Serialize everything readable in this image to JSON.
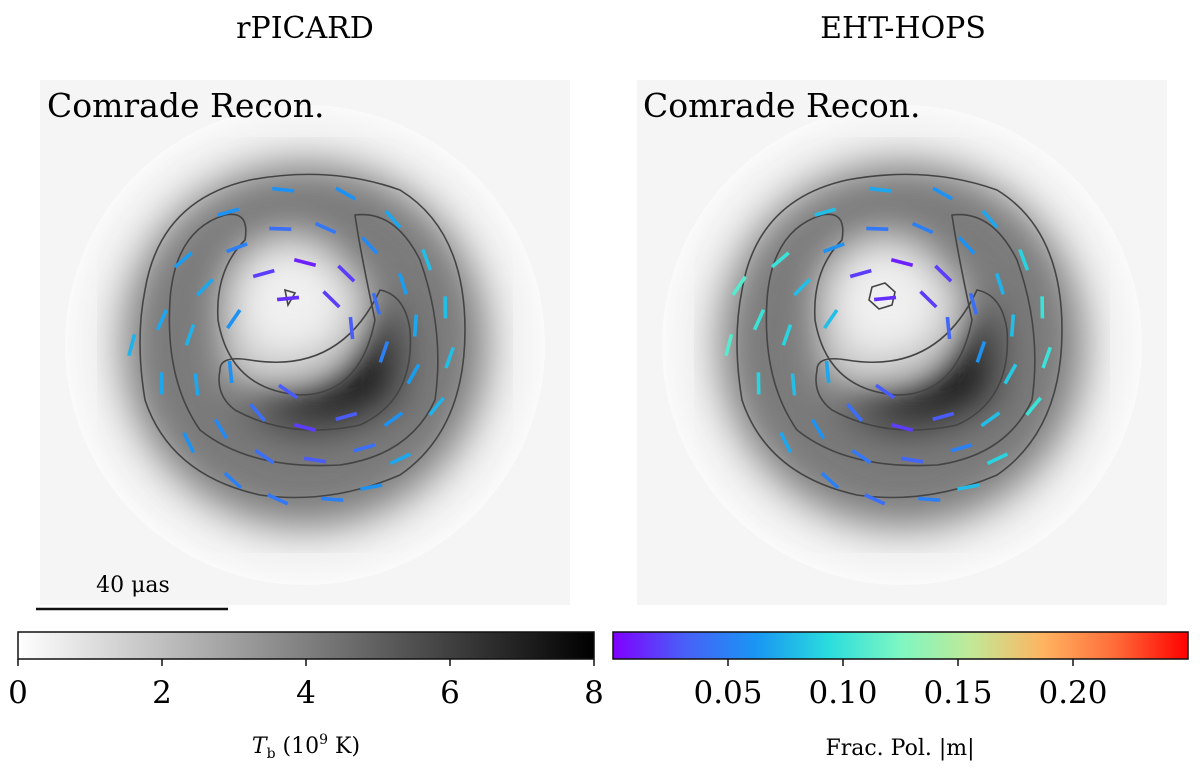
{
  "chart_data": {
    "type": "heatmap",
    "panels": [
      {
        "title": "rPICARD",
        "label": "Comrade Recon.",
        "scale_bar": "40 μas",
        "ring": {
          "peak_angle_deg": 270,
          "gap_angle_deg": 80,
          "center_feature": "triangle"
        },
        "evpa_ticks": [
          {
            "r": 0.9,
            "a": 50,
            "m": 0.07
          },
          {
            "r": 0.95,
            "a": 65,
            "m": 0.06
          },
          {
            "r": 0.95,
            "a": 80,
            "m": 0.05
          },
          {
            "r": 0.95,
            "a": 100,
            "m": 0.045
          },
          {
            "r": 0.93,
            "a": 118,
            "m": 0.05
          },
          {
            "r": 0.92,
            "a": 140,
            "m": 0.06
          },
          {
            "r": 0.9,
            "a": 165,
            "m": 0.07
          },
          {
            "r": 0.88,
            "a": 190,
            "m": 0.07
          },
          {
            "r": 0.9,
            "a": 215,
            "m": 0.065
          },
          {
            "r": 0.93,
            "a": 240,
            "m": 0.06
          },
          {
            "r": 0.95,
            "a": 262,
            "m": 0.06
          },
          {
            "r": 0.95,
            "a": 285,
            "m": 0.06
          },
          {
            "r": 0.93,
            "a": 305,
            "m": 0.07
          },
          {
            "r": 0.9,
            "a": 325,
            "m": 0.08
          },
          {
            "r": 0.88,
            "a": 345,
            "m": 0.08
          },
          {
            "r": 0.88,
            "a": 5,
            "m": 0.08
          },
          {
            "r": 0.88,
            "a": 25,
            "m": 0.075
          },
          {
            "r": 0.7,
            "a": 40,
            "m": 0.06
          },
          {
            "r": 0.72,
            "a": 60,
            "m": 0.04
          },
          {
            "r": 0.7,
            "a": 85,
            "m": 0.03
          },
          {
            "r": 0.72,
            "a": 110,
            "m": 0.04
          },
          {
            "r": 0.72,
            "a": 135,
            "m": 0.055
          },
          {
            "r": 0.7,
            "a": 160,
            "m": 0.07
          },
          {
            "r": 0.7,
            "a": 185,
            "m": 0.075
          },
          {
            "r": 0.7,
            "a": 210,
            "m": 0.07
          },
          {
            "r": 0.72,
            "a": 235,
            "m": 0.05
          },
          {
            "r": 0.72,
            "a": 258,
            "m": 0.04
          },
          {
            "r": 0.72,
            "a": 280,
            "m": 0.045
          },
          {
            "r": 0.72,
            "a": 303,
            "m": 0.055
          },
          {
            "r": 0.7,
            "a": 328,
            "m": 0.065
          },
          {
            "r": 0.68,
            "a": 350,
            "m": 0.07
          },
          {
            "r": 0.68,
            "a": 15,
            "m": 0.065
          },
          {
            "r": 0.5,
            "a": 60,
            "m": 0.03
          },
          {
            "r": 0.5,
            "a": 90,
            "m": 0.02
          },
          {
            "r": 0.5,
            "a": 125,
            "m": 0.04
          },
          {
            "r": 0.48,
            "a": 160,
            "m": 0.06
          },
          {
            "r": 0.46,
            "a": 200,
            "m": 0.06
          },
          {
            "r": 0.5,
            "a": 240,
            "m": 0.02
          },
          {
            "r": 0.5,
            "a": 270,
            "m": 0.01
          },
          {
            "r": 0.5,
            "a": 300,
            "m": 0.02
          },
          {
            "r": 0.5,
            "a": 330,
            "m": 0.04
          },
          {
            "r": 0.48,
            "a": 5,
            "m": 0.05
          },
          {
            "r": 0.3,
            "a": 250,
            "m": 0.015
          },
          {
            "r": 0.32,
            "a": 300,
            "m": 0.02
          },
          {
            "r": 0.3,
            "a": 340,
            "m": 0.03
          },
          {
            "r": 0.3,
            "a": 110,
            "m": 0.03
          },
          {
            "r": 1.05,
            "a": 180,
            "m": 0.075
          }
        ]
      },
      {
        "title": "EHT-HOPS",
        "label": "Comrade Recon.",
        "scale_bar": "",
        "ring": {
          "peak_angle_deg": 270,
          "gap_angle_deg": 80,
          "center_feature": "hexagon"
        },
        "evpa_ticks": [
          {
            "r": 0.9,
            "a": 50,
            "m": 0.09
          },
          {
            "r": 0.95,
            "a": 65,
            "m": 0.08
          },
          {
            "r": 0.95,
            "a": 80,
            "m": 0.05
          },
          {
            "r": 0.95,
            "a": 100,
            "m": 0.04
          },
          {
            "r": 0.93,
            "a": 118,
            "m": 0.05
          },
          {
            "r": 0.92,
            "a": 140,
            "m": 0.07
          },
          {
            "r": 0.9,
            "a": 165,
            "m": 0.09
          },
          {
            "r": 0.88,
            "a": 190,
            "m": 0.1
          },
          {
            "r": 0.9,
            "a": 215,
            "m": 0.1
          },
          {
            "r": 0.93,
            "a": 240,
            "m": 0.08
          },
          {
            "r": 0.95,
            "a": 262,
            "m": 0.07
          },
          {
            "r": 0.95,
            "a": 285,
            "m": 0.06
          },
          {
            "r": 0.93,
            "a": 305,
            "m": 0.07
          },
          {
            "r": 0.9,
            "a": 325,
            "m": 0.09
          },
          {
            "r": 0.88,
            "a": 345,
            "m": 0.1
          },
          {
            "r": 0.88,
            "a": 5,
            "m": 0.1
          },
          {
            "r": 0.88,
            "a": 25,
            "m": 0.1
          },
          {
            "r": 0.7,
            "a": 40,
            "m": 0.08
          },
          {
            "r": 0.72,
            "a": 60,
            "m": 0.05
          },
          {
            "r": 0.7,
            "a": 85,
            "m": 0.035
          },
          {
            "r": 0.72,
            "a": 110,
            "m": 0.045
          },
          {
            "r": 0.72,
            "a": 135,
            "m": 0.06
          },
          {
            "r": 0.7,
            "a": 160,
            "m": 0.08
          },
          {
            "r": 0.7,
            "a": 185,
            "m": 0.09
          },
          {
            "r": 0.7,
            "a": 210,
            "m": 0.08
          },
          {
            "r": 0.72,
            "a": 235,
            "m": 0.06
          },
          {
            "r": 0.72,
            "a": 258,
            "m": 0.045
          },
          {
            "r": 0.72,
            "a": 280,
            "m": 0.05
          },
          {
            "r": 0.72,
            "a": 303,
            "m": 0.06
          },
          {
            "r": 0.7,
            "a": 328,
            "m": 0.075
          },
          {
            "r": 0.68,
            "a": 350,
            "m": 0.08
          },
          {
            "r": 0.68,
            "a": 15,
            "m": 0.085
          },
          {
            "r": 0.5,
            "a": 60,
            "m": 0.03
          },
          {
            "r": 0.5,
            "a": 90,
            "m": 0.02
          },
          {
            "r": 0.5,
            "a": 125,
            "m": 0.04
          },
          {
            "r": 0.48,
            "a": 160,
            "m": 0.07
          },
          {
            "r": 0.46,
            "a": 200,
            "m": 0.08
          },
          {
            "r": 0.5,
            "a": 240,
            "m": 0.02
          },
          {
            "r": 0.5,
            "a": 270,
            "m": 0.01
          },
          {
            "r": 0.5,
            "a": 300,
            "m": 0.02
          },
          {
            "r": 0.5,
            "a": 330,
            "m": 0.04
          },
          {
            "r": 0.48,
            "a": 5,
            "m": 0.06
          },
          {
            "r": 0.3,
            "a": 250,
            "m": 0.015
          },
          {
            "r": 0.32,
            "a": 300,
            "m": 0.02
          },
          {
            "r": 0.3,
            "a": 340,
            "m": 0.035
          },
          {
            "r": 0.3,
            "a": 110,
            "m": 0.03
          },
          {
            "r": 1.05,
            "a": 180,
            "m": 0.11
          },
          {
            "r": 1.05,
            "a": 200,
            "m": 0.11
          }
        ]
      }
    ],
    "colorbars": [
      {
        "name": "brightness",
        "range": [
          0,
          8
        ],
        "ticks": [
          "0",
          "2",
          "4",
          "6",
          "8"
        ],
        "label": "T_b (10^9 K)",
        "colormap": "gray_r"
      },
      {
        "name": "fractional-polarization",
        "range": [
          0,
          0.25
        ],
        "ticks": [
          "0.05",
          "0.10",
          "0.15",
          "0.20"
        ],
        "label": "Frac. Pol. |m|",
        "colormap": "rainbow"
      }
    ]
  },
  "colors": {
    "rainbow": [
      "#7f00ff",
      "#4860f8",
      "#1996f3",
      "#2adddd",
      "#7ef7c2",
      "#c2e896",
      "#ffb360",
      "#ff6a38",
      "#ff0000"
    ],
    "contour": "#444444"
  },
  "labels": {
    "left_title": "rPICARD",
    "right_title": "EHT-HOPS",
    "left_panel_label": "Comrade Recon.",
    "right_panel_label": "Comrade Recon.",
    "scale_bar": "40 μas",
    "tb_axis": {
      "symbol": "T",
      "sub": "b",
      "rest_open": " (10",
      "sup": "9",
      "rest_close": " K)"
    },
    "m_axis": "Frac. Pol. |m|"
  }
}
